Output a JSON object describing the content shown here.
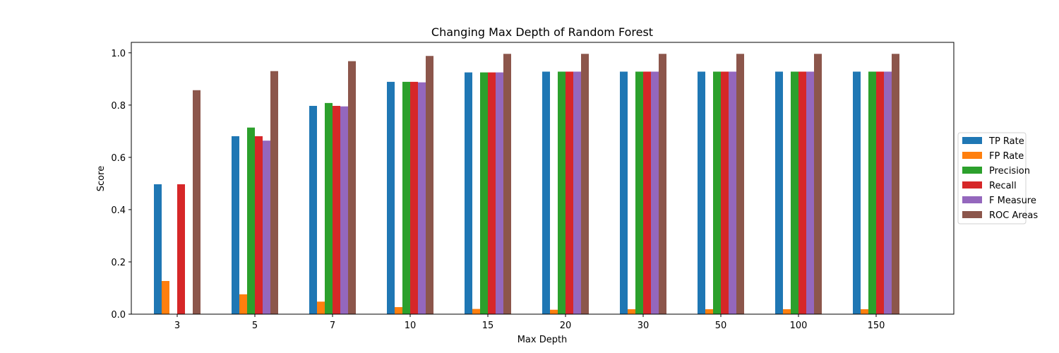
{
  "chart_data": {
    "type": "bar",
    "title": "Changing Max Depth of Random Forest",
    "xlabel": "Max Depth",
    "ylabel": "Score",
    "categories": [
      "3",
      "5",
      "7",
      "10",
      "15",
      "20",
      "30",
      "50",
      "100",
      "150"
    ],
    "series": [
      {
        "name": "TP Rate",
        "color": "#1f77b4",
        "values": [
          0.497,
          0.681,
          0.797,
          0.889,
          0.925,
          0.928,
          0.928,
          0.928,
          0.928,
          0.928
        ]
      },
      {
        "name": "FP Rate",
        "color": "#ff7f0e",
        "values": [
          0.127,
          0.076,
          0.048,
          0.027,
          0.02,
          0.017,
          0.019,
          0.019,
          0.019,
          0.019
        ]
      },
      {
        "name": "Precision",
        "color": "#2ca02c",
        "values": [
          0.0,
          0.714,
          0.808,
          0.889,
          0.925,
          0.928,
          0.928,
          0.928,
          0.928,
          0.928
        ]
      },
      {
        "name": "Recall",
        "color": "#d62728",
        "values": [
          0.497,
          0.681,
          0.797,
          0.889,
          0.925,
          0.928,
          0.928,
          0.928,
          0.928,
          0.928
        ]
      },
      {
        "name": "F Measure",
        "color": "#9467bd",
        "values": [
          0.0,
          0.664,
          0.795,
          0.887,
          0.925,
          0.928,
          0.928,
          0.928,
          0.928,
          0.928
        ]
      },
      {
        "name": "ROC Areas",
        "color": "#8c564b",
        "values": [
          0.857,
          0.93,
          0.968,
          0.988,
          0.996,
          0.996,
          0.996,
          0.996,
          0.996,
          0.996
        ]
      }
    ],
    "ylim": [
      0,
      1.04
    ],
    "yticks": [
      0.0,
      0.2,
      0.4,
      0.6,
      0.8,
      1.0
    ],
    "ytick_labels": [
      "0.0",
      "0.2",
      "0.4",
      "0.6",
      "0.8",
      "1.0"
    ],
    "grid": false,
    "legend_position": "right"
  }
}
